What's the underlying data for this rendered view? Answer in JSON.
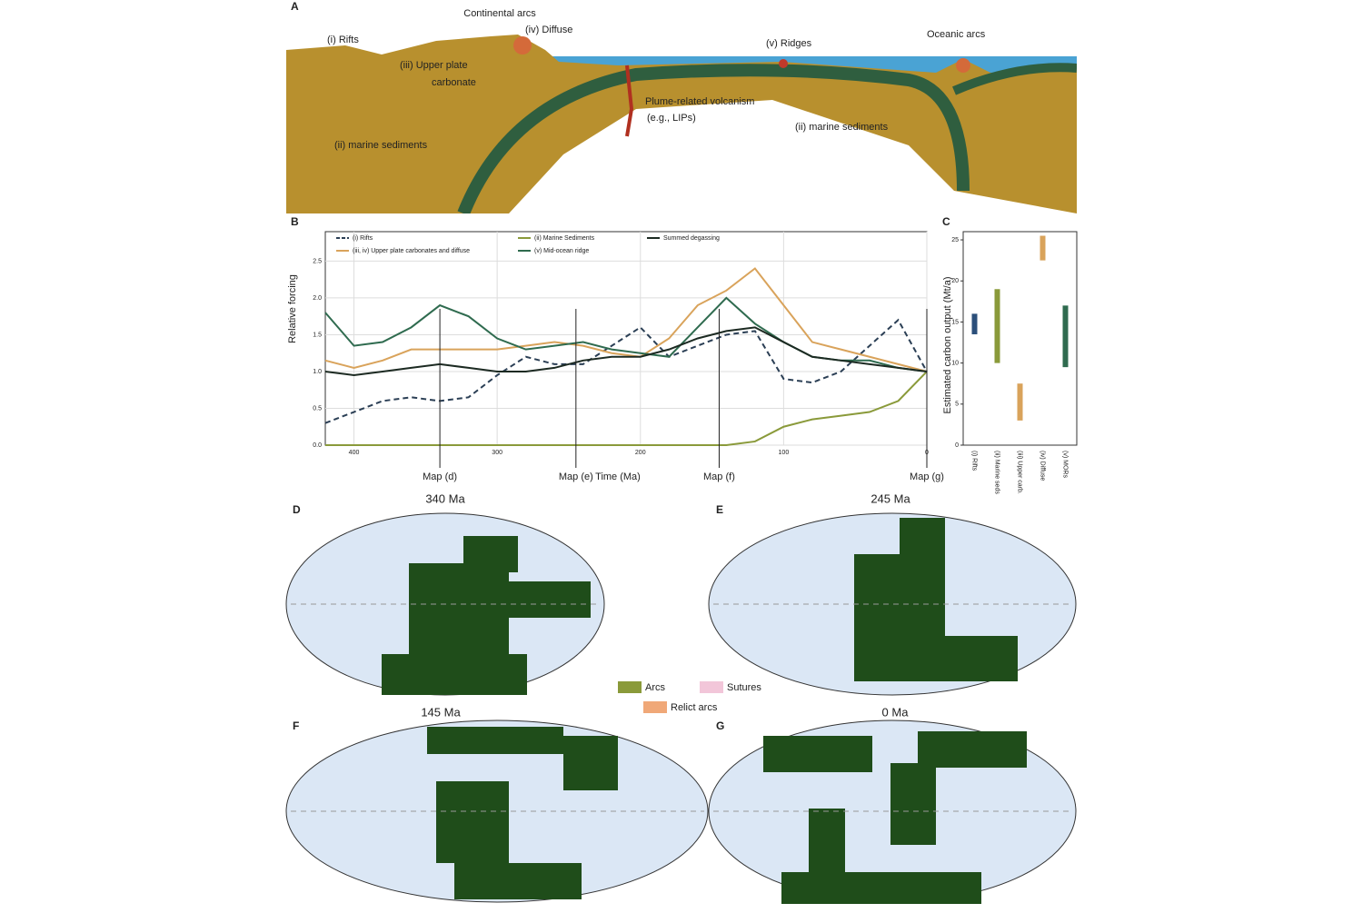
{
  "panel_a": {
    "letter": "A",
    "continental_arcs": "Continental arcs",
    "rifts": "(i) Rifts",
    "diffuse": "(iv) Diffuse",
    "upper_plate": [
      "(iii) Upper plate",
      "carbonate"
    ],
    "ridges": "(v) Ridges",
    "oceanic_arcs": "Oceanic arcs",
    "plume": [
      "Plume-related volcanism",
      "(e.g., LIPs)"
    ],
    "marine_left": "(ii) marine sediments",
    "marine_right": "(ii) marine sediments"
  },
  "chart_data": [
    {
      "type": "line",
      "panel": "B",
      "ylabel": "Relative forcing",
      "xlabel": "Time (Ma)",
      "x": [
        420,
        400,
        380,
        360,
        340,
        320,
        300,
        280,
        260,
        240,
        220,
        200,
        180,
        160,
        140,
        120,
        100,
        80,
        60,
        40,
        20,
        0
      ],
      "xlim": [
        420,
        0
      ],
      "xticks": [
        400,
        300,
        200,
        100,
        0
      ],
      "ylim": [
        0,
        2.9
      ],
      "yticks": [
        {
          "value": 0,
          "label": "0.0"
        },
        0.5,
        {
          "value": 1,
          "label": "1.0"
        },
        1.5,
        {
          "value": 2,
          "label": "2.0"
        },
        2.5
      ],
      "grid": true,
      "series": [
        {
          "name": "(i) Rifts",
          "color": "#2b3f55",
          "style": "dashed",
          "values": [
            0.3,
            0.45,
            0.6,
            0.65,
            0.6,
            0.65,
            0.95,
            1.2,
            1.1,
            1.1,
            1.35,
            1.6,
            1.2,
            1.35,
            1.5,
            1.55,
            0.9,
            0.85,
            1.0,
            1.35,
            1.7,
            1.0
          ]
        },
        {
          "name": "(iii, iv) Upper plate carbonates and diffuse",
          "color": "#d9a35b",
          "style": "solid",
          "values": [
            1.15,
            1.05,
            1.15,
            1.3,
            1.3,
            1.3,
            1.3,
            1.35,
            1.4,
            1.35,
            1.25,
            1.2,
            1.45,
            1.9,
            2.1,
            2.4,
            1.9,
            1.4,
            1.3,
            1.2,
            1.1,
            1.0
          ]
        },
        {
          "name": "(ii) Marine Sediments",
          "color": "#8a9a3a",
          "style": "solid",
          "values": [
            0,
            0,
            0,
            0,
            0,
            0,
            0,
            0,
            0,
            0,
            0,
            0,
            0,
            0,
            0,
            0.05,
            0.25,
            0.35,
            0.4,
            0.45,
            0.6,
            1.0
          ]
        },
        {
          "name": "(v) Mid-ocean ridge",
          "color": "#2f6b4f",
          "style": "solid",
          "values": [
            1.8,
            1.35,
            1.4,
            1.6,
            1.9,
            1.75,
            1.45,
            1.3,
            1.35,
            1.4,
            1.3,
            1.25,
            1.2,
            1.6,
            2.0,
            1.65,
            1.4,
            1.2,
            1.15,
            1.15,
            1.05,
            1.0
          ]
        },
        {
          "name": "Summed degassing",
          "color": "#1c2a22",
          "style": "solid",
          "values": [
            1.0,
            0.95,
            1.0,
            1.05,
            1.1,
            1.05,
            1.0,
            1.0,
            1.05,
            1.15,
            1.2,
            1.2,
            1.3,
            1.45,
            1.55,
            1.6,
            1.4,
            1.2,
            1.15,
            1.1,
            1.05,
            1.0
          ]
        }
      ],
      "map_markers": [
        {
          "x": 340,
          "label": "Map (d)"
        },
        {
          "x": 245,
          "label": "Map (e)"
        },
        {
          "x": 145,
          "label": "Map (f)"
        },
        {
          "x": 0,
          "label": "Map (g)"
        }
      ]
    },
    {
      "type": "range",
      "panel": "C",
      "ylabel": "Estimated carbon output (Mt/a)",
      "categories": [
        "(i) Rifts",
        "(ii) Marine seds",
        "(iii) Upper carb.",
        "(iv) Diffuse",
        "(v) MORs"
      ],
      "low": [
        13.5,
        10,
        3,
        22.5,
        9.5
      ],
      "high": [
        16,
        19,
        7.5,
        25.5,
        17
      ],
      "colors": [
        "#2b4f7a",
        "#8a9a3a",
        "#d9a35b",
        "#d9a35b",
        "#2f6b4f"
      ],
      "ylim": [
        0,
        26
      ],
      "yticks": [
        0,
        5,
        10,
        15,
        20,
        25
      ]
    }
  ],
  "maps": {
    "panels": [
      {
        "letter": "D",
        "title": "340 Ma"
      },
      {
        "letter": "E",
        "title": "245 Ma"
      },
      {
        "letter": "F",
        "title": "145 Ma"
      },
      {
        "letter": "G",
        "title": "0 Ma"
      }
    ],
    "legend": [
      "Arcs",
      "Sutures",
      "Relict arcs"
    ]
  }
}
